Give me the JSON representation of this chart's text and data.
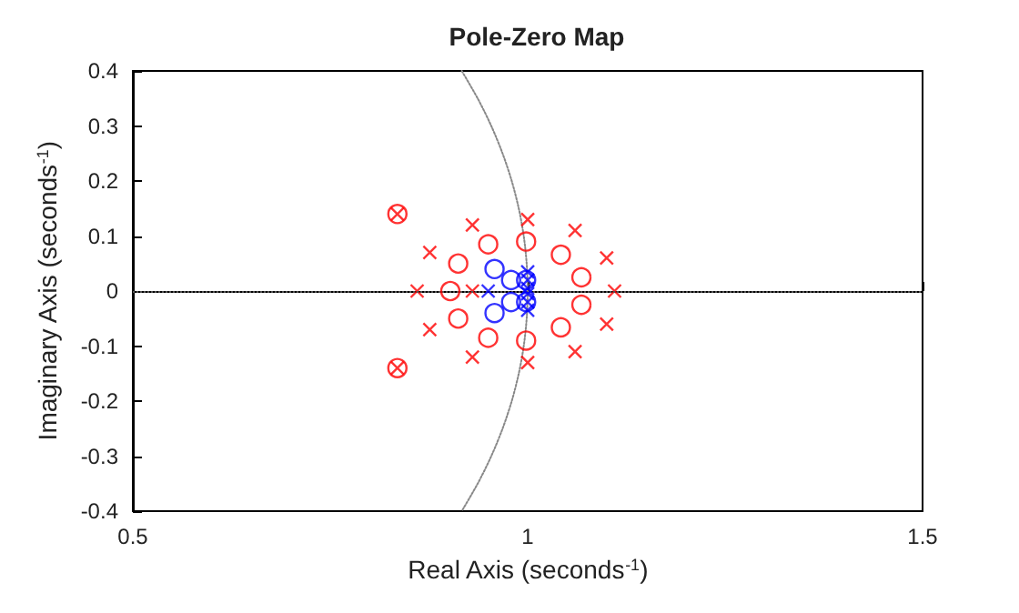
{
  "chart_data": {
    "type": "scatter",
    "title": "Pole-Zero Map",
    "xlabel": "Real Axis (seconds$^{-1}$)",
    "ylabel": "Imaginary Axis (seconds$^{-1}$)",
    "xlim": [
      0.5,
      1.5
    ],
    "xticks": [
      0.5,
      1,
      1.5
    ],
    "ylim": [
      -0.4,
      0.4
    ],
    "yticks": [
      -0.4,
      -0.3,
      -0.2,
      -0.1,
      0,
      0.1,
      0.2,
      0.3,
      0.4
    ],
    "grid": false,
    "ref_lines": [
      {
        "axis": "y",
        "value": 0,
        "color": "#555555",
        "line_style": "dotted"
      }
    ],
    "series": [
      {
        "type": "line",
        "color": "#888888",
        "line_style": "dotted",
        "marker": "none",
        "x": [
          0.9165,
          0.9367,
          0.9539,
          0.9682,
          0.9798,
          0.9887,
          0.995,
          0.9987,
          1,
          0.9987,
          0.995,
          0.9887,
          0.9798,
          0.9682,
          0.9539,
          0.9367,
          0.9165
        ],
        "values": [
          0.4,
          0.35,
          0.3,
          0.25,
          0.2,
          0.15,
          0.1,
          0.05,
          0,
          -0.05,
          -0.1,
          -0.15,
          -0.2,
          -0.25,
          -0.3,
          -0.35,
          -0.4
        ]
      },
      {
        "color": "#ff0000",
        "marker": "cross",
        "x": [
          0.835,
          0.835,
          0.93,
          0.93,
          1.0,
          1.0,
          1.06,
          1.06,
          0.876,
          0.876,
          1.1,
          1.1,
          0.86,
          0.93,
          1.11
        ],
        "values": [
          0.14,
          -0.14,
          0.12,
          -0.12,
          0.13,
          -0.13,
          0.11,
          -0.11,
          0.07,
          -0.07,
          0.06,
          -0.06,
          0,
          0,
          0
        ]
      },
      {
        "color": "#ff0000",
        "marker": "circle",
        "x": [
          0.835,
          0.835,
          0.95,
          0.95,
          0.998,
          0.998,
          1.042,
          1.042,
          0.912,
          0.912,
          1.068,
          1.068,
          0.902
        ],
        "values": [
          0.14,
          -0.14,
          0.085,
          -0.085,
          0.09,
          -0.09,
          0.066,
          -0.066,
          0.05,
          -0.05,
          0.025,
          -0.025,
          0
        ]
      },
      {
        "color": "#0000ff",
        "marker": "cross",
        "x": [
          0.95,
          1.0,
          1.0,
          1.0,
          1.0,
          1.0,
          1.0
        ],
        "values": [
          0,
          0.035,
          0.02,
          0.005,
          -0.005,
          -0.02,
          -0.035
        ]
      },
      {
        "color": "#0000ff",
        "marker": "circle",
        "x": [
          0.958,
          0.958,
          0.979,
          0.979,
          0.998,
          0.998
        ],
        "values": [
          0.04,
          -0.04,
          0.02,
          -0.02,
          0.02,
          -0.02
        ]
      }
    ]
  }
}
